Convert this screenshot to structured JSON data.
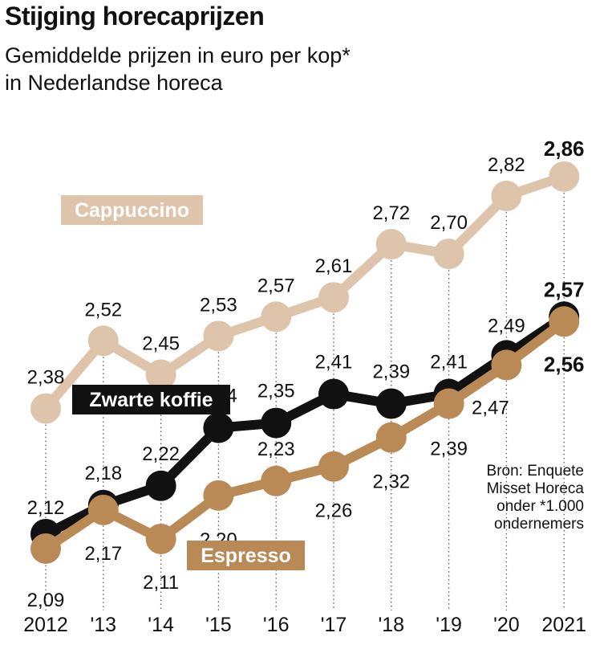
{
  "title": "Stijging horecaprijzen",
  "subtitle_line1": "Gemiddelde prijzen in euro per kop*",
  "subtitle_line2": "in Nederlandse horeca",
  "source_lines": [
    "Bron: Enquete",
    "Misset Horeca",
    "onder *1.000",
    "ondernemers"
  ],
  "colors": {
    "cappuccino": "#ddc4aa",
    "zwarte_koffie": "#111111",
    "espresso": "#b98a56",
    "grid": "#555555"
  },
  "chart_data": {
    "type": "line",
    "title": "Stijging horecaprijzen",
    "x": [
      "2012",
      "'13",
      "'14",
      "'15",
      "'16",
      "'17",
      "'18",
      "'19",
      "'20",
      "2021"
    ],
    "ylim": [
      2.0,
      2.95
    ],
    "grid": "vertical dotted lines",
    "legend": "inline labels",
    "series": [
      {
        "name": "Cappuccino",
        "values": [
          2.38,
          2.52,
          2.45,
          2.53,
          2.57,
          2.61,
          2.72,
          2.7,
          2.82,
          2.86
        ],
        "labels": [
          "2,38",
          "2,52",
          "2,45",
          "2,53",
          "2,57",
          "2,61",
          "2,72",
          "2,70",
          "2,82",
          "2,86"
        ]
      },
      {
        "name": "Zwarte koffie",
        "values": [
          2.12,
          2.18,
          2.22,
          2.34,
          2.35,
          2.41,
          2.39,
          2.41,
          2.49,
          2.57
        ],
        "labels": [
          "2,12",
          "2,18",
          "2,22",
          "2,34",
          "2,35",
          "2,41",
          "2,39",
          "2,41",
          "2,49",
          "2,57"
        ]
      },
      {
        "name": "Espresso",
        "values": [
          2.09,
          2.17,
          2.11,
          2.2,
          2.23,
          2.26,
          2.32,
          2.39,
          2.47,
          2.56
        ],
        "labels": [
          "2,09",
          "2,17",
          "2,11",
          "2,20",
          "2,23",
          "2,26",
          "2,32",
          "2,39",
          "2,47",
          "2,56"
        ]
      }
    ]
  }
}
